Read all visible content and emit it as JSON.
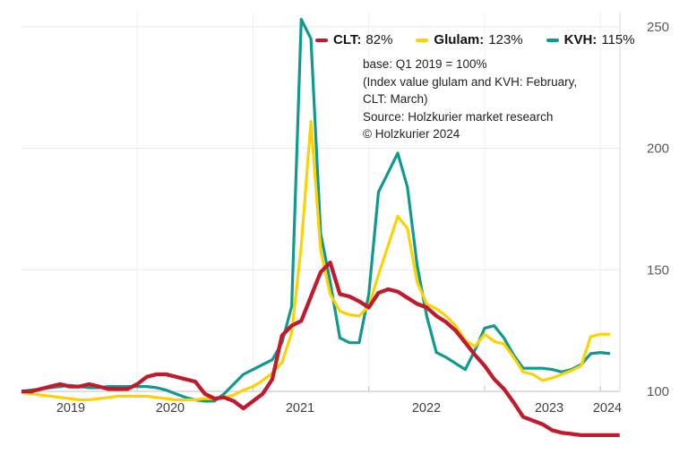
{
  "legend": {
    "items": [
      {
        "label": "CLT:",
        "value": "82%",
        "color": "#bf1b2c"
      },
      {
        "label": "Glulam:",
        "value": "123%",
        "color": "#fdd205"
      },
      {
        "label": "KVH:",
        "value": "115%",
        "color": "#0f9a8f"
      }
    ]
  },
  "annotation": {
    "lines": [
      "base: Q1 2019 = 100%",
      "(Index value glulam and KVH: February,",
      "CLT: March)",
      "Source: Holzkurier market research",
      "© Holzkurier 2024"
    ]
  },
  "chart_data": {
    "type": "line",
    "title": "",
    "xlabel": "",
    "ylabel": "",
    "x_unit": "month",
    "x_start": "2019-01",
    "x_tick_labels": [
      "2019",
      "2020",
      "2021",
      "2022",
      "2023",
      "2024"
    ],
    "y_ticks": [
      100,
      150,
      200,
      250
    ],
    "ylim": [
      75,
      260
    ],
    "grid": "horizontal-light",
    "legend_position": "top",
    "base_note": "Q1 2019 = 100",
    "series": [
      {
        "name": "CLT",
        "color": "#bf1b2c",
        "current_value": "82%",
        "values": [
          100,
          100,
          101,
          102,
          103,
          102,
          102,
          103,
          102,
          101,
          101,
          101,
          103,
          106,
          107,
          107,
          106,
          105,
          104,
          99,
          97,
          97.5,
          96,
          93,
          96,
          99,
          105,
          123,
          127,
          129,
          139,
          149,
          153,
          140,
          139,
          137,
          134.5,
          140.5,
          142,
          141,
          138.5,
          136,
          134.5,
          131,
          128.5,
          125,
          120,
          115,
          110.5,
          105,
          101,
          95.5,
          89.5,
          88,
          86.5,
          84,
          83,
          82.5,
          82,
          82,
          82,
          82,
          82
        ]
      },
      {
        "name": "Glulam",
        "color": "#fdd205",
        "current_value": "123%",
        "values": [
          99.5,
          99,
          98.5,
          98,
          97.5,
          97,
          96.5,
          96.5,
          97,
          97.5,
          98,
          98,
          98,
          98,
          97.5,
          97,
          96.5,
          96.5,
          96.5,
          97,
          97,
          97.5,
          98.5,
          100.5,
          102,
          104.5,
          107.5,
          112,
          124,
          160,
          211,
          158,
          140,
          133,
          131.5,
          131,
          135,
          148,
          160,
          172,
          167,
          145,
          136,
          134,
          131,
          127,
          121,
          118.5,
          123.5,
          120.5,
          119.5,
          114,
          108,
          107,
          104.5,
          105.5,
          107,
          108.5,
          110.5,
          122.5,
          123.5,
          123.5
        ]
      },
      {
        "name": "KVH",
        "color": "#0f9a8f",
        "current_value": "115%",
        "values": [
          100,
          100.5,
          101,
          101.5,
          102,
          102.5,
          102,
          101.5,
          101.5,
          102,
          102,
          102,
          102,
          102,
          101.5,
          100.5,
          99,
          97.5,
          96.5,
          96,
          96,
          99,
          103,
          107,
          109,
          111,
          113,
          120,
          135,
          253,
          245,
          165,
          145,
          122,
          120,
          120,
          140,
          182,
          190,
          198,
          184,
          152,
          131,
          116,
          114,
          111.5,
          109,
          117,
          126,
          127,
          122,
          115,
          109.5,
          109.5,
          109.5,
          109,
          108,
          109,
          111,
          115.5,
          116,
          115.5
        ]
      }
    ]
  }
}
